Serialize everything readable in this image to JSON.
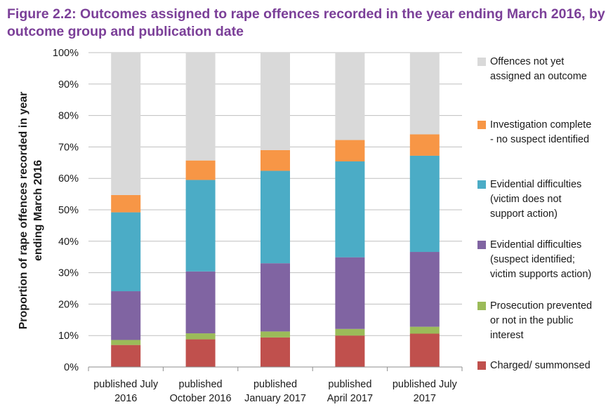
{
  "title": {
    "line1": "Figure 2.2: Outcomes assigned to rape offences recorded in the year ending March 2016, by",
    "line2": "outcome group and publication date"
  },
  "chart_data": {
    "type": "bar",
    "stacked": true,
    "title": "Figure 2.2: Outcomes assigned to rape offences recorded in the year ending March 2016, by outcome group and publication date",
    "ylabel_lines": [
      "Proportion of rape offences recorded in year",
      "ending March 2016"
    ],
    "ylim": [
      0,
      100
    ],
    "yticks": [
      "0%",
      "10%",
      "20%",
      "30%",
      "40%",
      "50%",
      "60%",
      "70%",
      "80%",
      "90%",
      "100%"
    ],
    "categories": [
      [
        "published July",
        "2016"
      ],
      [
        "published",
        "October 2016"
      ],
      [
        "published",
        "January 2017"
      ],
      [
        "published",
        "April 2017"
      ],
      [
        "published July",
        "2017"
      ]
    ],
    "series": [
      {
        "name": "Charged/ summonsed",
        "color": "#c0504d",
        "values": [
          7.0,
          8.8,
          9.4,
          10.0,
          10.6
        ]
      },
      {
        "name": "Prosecution prevented or not in the public interest",
        "color": "#9bbb59",
        "values": [
          1.6,
          1.9,
          1.9,
          2.1,
          2.2
        ]
      },
      {
        "name": "Evidential difficulties (suspect identified; victim supports action)",
        "color": "#8064a2",
        "values": [
          15.5,
          19.7,
          21.7,
          22.8,
          23.8
        ]
      },
      {
        "name": "Evidential difficulties (victim does not support action)",
        "color": "#4bacc6",
        "values": [
          25.1,
          29.1,
          29.4,
          30.5,
          30.6
        ]
      },
      {
        "name": "Investigation complete - no suspect identified",
        "color": "#f79646",
        "values": [
          5.5,
          6.2,
          6.6,
          6.8,
          6.8
        ]
      },
      {
        "name": "Offences not yet assigned an outcome",
        "color": "#d9d9d9",
        "values": [
          45.3,
          34.3,
          31.0,
          27.8,
          26.0
        ]
      }
    ]
  },
  "legend": [
    {
      "text": "Offences not yet\nassigned an outcome",
      "color": "#d9d9d9"
    },
    {
      "text": "Investigation complete\n- no suspect identified",
      "color": "#f79646"
    },
    {
      "text": "Evidential difficulties\n(victim does not\nsupport action)",
      "color": "#4bacc6"
    },
    {
      "text": "Evidential difficulties\n(suspect identified;\nvictim supports action)",
      "color": "#8064a2"
    },
    {
      "text": "Prosecution prevented\nor not in the public\ninterest",
      "color": "#9bbb59"
    },
    {
      "text": "Charged/ summonsed",
      "color": "#c0504d"
    }
  ]
}
